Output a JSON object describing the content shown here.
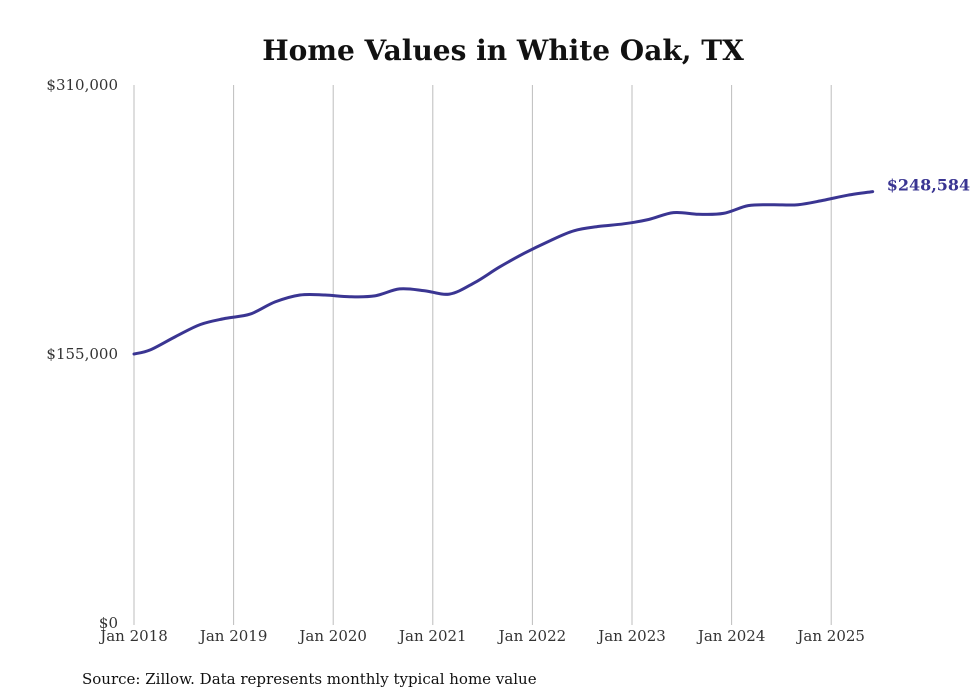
{
  "chart_data": {
    "type": "line",
    "title": "Home Values in White Oak, TX",
    "xlabel": "",
    "ylabel": "",
    "ylim": [
      0,
      310000
    ],
    "y_ticks": [
      {
        "value": 0,
        "label": "$0"
      },
      {
        "value": 155000,
        "label": "$155,000"
      },
      {
        "value": 310000,
        "label": "$310,000"
      }
    ],
    "x_ticks": [
      {
        "value": "2018-01",
        "label": "Jan 2018"
      },
      {
        "value": "2019-01",
        "label": "Jan 2019"
      },
      {
        "value": "2020-01",
        "label": "Jan 2020"
      },
      {
        "value": "2021-01",
        "label": "Jan 2021"
      },
      {
        "value": "2022-01",
        "label": "Jan 2022"
      },
      {
        "value": "2023-01",
        "label": "Jan 2023"
      },
      {
        "value": "2024-01",
        "label": "Jan 2024"
      },
      {
        "value": "2025-01",
        "label": "Jan 2025"
      }
    ],
    "grid": {
      "vertical": true,
      "horizontal": false
    },
    "series": [
      {
        "color": "#3a3592",
        "x": [
          "2018-01",
          "2018-03",
          "2018-06",
          "2018-09",
          "2018-12",
          "2019-03",
          "2019-06",
          "2019-09",
          "2019-12",
          "2020-03",
          "2020-06",
          "2020-09",
          "2020-12",
          "2021-03",
          "2021-06",
          "2021-09",
          "2021-12",
          "2022-03",
          "2022-06",
          "2022-09",
          "2022-12",
          "2023-03",
          "2023-06",
          "2023-09",
          "2023-12",
          "2024-03",
          "2024-06",
          "2024-09",
          "2024-12",
          "2025-03",
          "2025-06"
        ],
        "y": [
          155000,
          157500,
          165000,
          172000,
          175500,
          178000,
          185000,
          189000,
          189000,
          188000,
          188500,
          192500,
          191500,
          189500,
          196000,
          205000,
          213000,
          220000,
          226000,
          228500,
          230000,
          232500,
          236500,
          235500,
          236000,
          240500,
          241000,
          241000,
          243500,
          246500,
          248584
        ]
      }
    ],
    "end_label": "$248,584",
    "source": "Source: Zillow. Data represents monthly typical home value"
  }
}
